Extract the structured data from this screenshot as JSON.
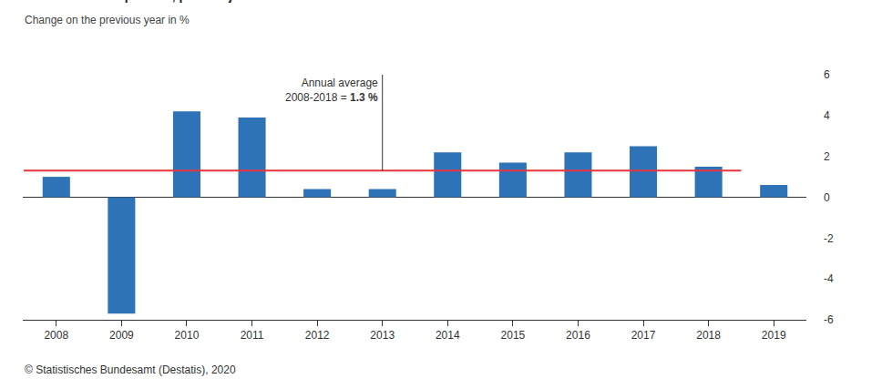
{
  "chart_data": {
    "type": "bar",
    "title": "Gross domestic product, price-adjusted",
    "subtitle": "Change on the previous year in %",
    "source": "© Statistisches Bundesamt (Destatis), 2020",
    "categories": [
      "2008",
      "2009",
      "2010",
      "2011",
      "2012",
      "2013",
      "2014",
      "2015",
      "2016",
      "2017",
      "2018",
      "2019"
    ],
    "values": [
      1.0,
      -5.7,
      4.2,
      3.9,
      0.4,
      0.4,
      2.2,
      1.7,
      2.2,
      2.5,
      1.5,
      0.6
    ],
    "color": "#2e72b8",
    "ylim": [
      -6,
      6
    ],
    "yticks": [
      -6,
      -4,
      -2,
      0,
      2,
      4,
      6
    ],
    "grid": false,
    "average": {
      "value": 1.3,
      "from": "2008",
      "to": "2018",
      "at": "2013",
      "color": "#e8343c",
      "text": [
        "Annual average",
        "2008-2018 = "
      ],
      "label": "1.3 %"
    }
  }
}
